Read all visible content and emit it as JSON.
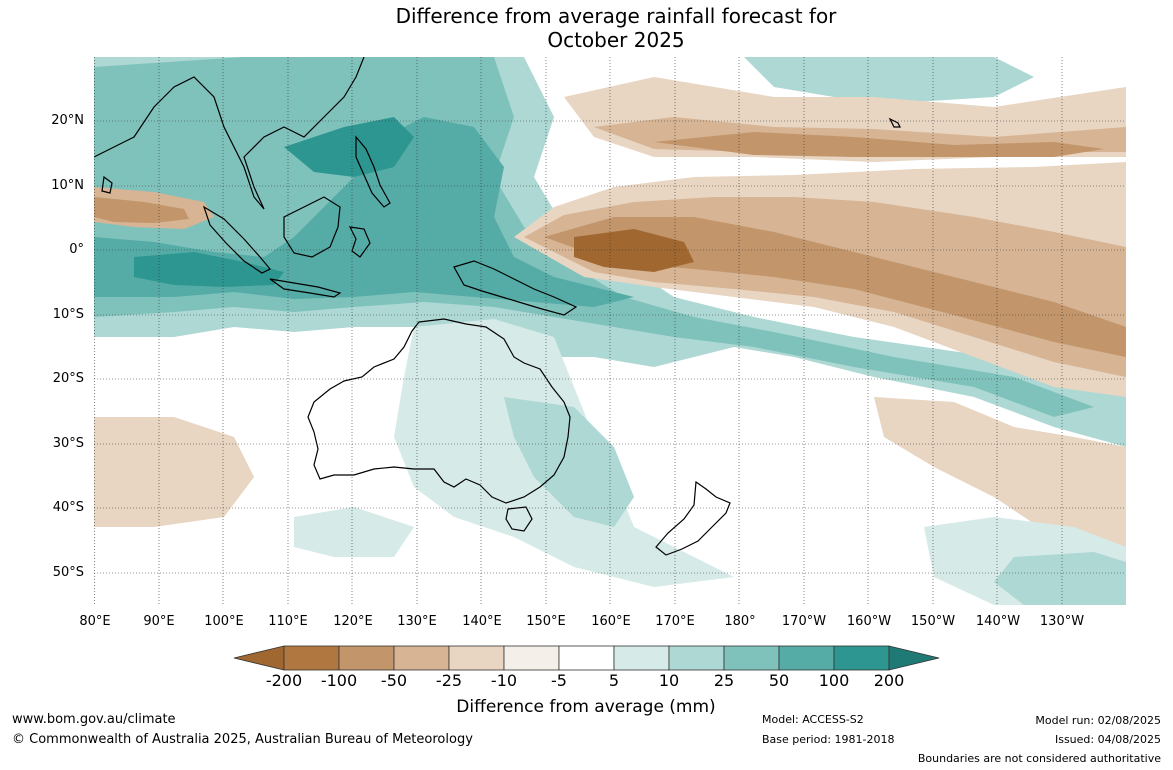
{
  "title": {
    "line1": "Difference from average rainfall forecast for",
    "line2": "October 2025"
  },
  "map": {
    "lat_labels": [
      "20°N",
      "10°N",
      "0°",
      "10°S",
      "20°S",
      "30°S",
      "40°S",
      "50°S"
    ],
    "lon_labels": [
      "80°E",
      "90°E",
      "100°E",
      "110°E",
      "120°E",
      "130°E",
      "140°E",
      "150°E",
      "160°E",
      "170°E",
      "180°",
      "170°W",
      "160°W",
      "150°W",
      "140°W",
      "130°W"
    ]
  },
  "legend": {
    "title": "Difference from average (mm)",
    "ticks": [
      "-200",
      "-100",
      "-50",
      "-25",
      "-10",
      "-5",
      "5",
      "10",
      "25",
      "50",
      "100",
      "200"
    ],
    "colors": [
      "#a06830",
      "#b07840",
      "#c2956b",
      "#d6b494",
      "#e8d5c2",
      "#f4efe8",
      "#ffffff",
      "#d6eae8",
      "#aed8d4",
      "#7fc2bc",
      "#55aca6",
      "#2e9690",
      "#1f7a76"
    ]
  },
  "footer": {
    "website": "www.bom.gov.au/climate",
    "copyright": "© Commonwealth of Australia 2025, Australian Bureau of Meteorology",
    "model": "Model: ACCESS-S2",
    "base_period": "Base period: 1981-2018",
    "model_run": "Model run: 02/08/2025",
    "issued": "Issued: 04/08/2025",
    "disclaimer": "Boundaries are not considered authoritative"
  }
}
